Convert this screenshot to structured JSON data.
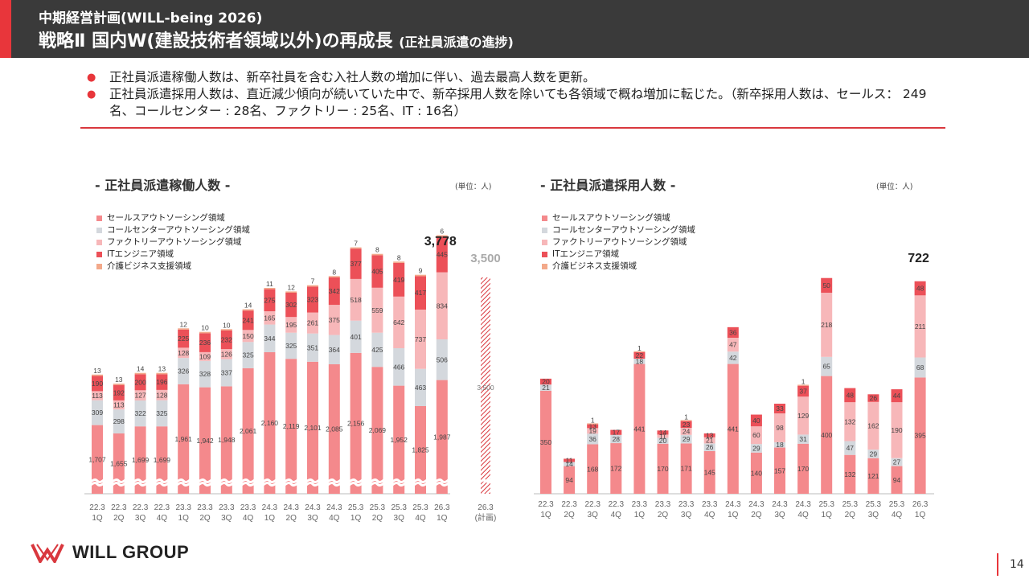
{
  "header": {
    "subtitle": "中期経営計画(WILL-being 2026)",
    "title": "戦略Ⅱ 国内W(建設技術者領域以外)の再成長",
    "title_note": "(正社員派遣の進捗)"
  },
  "bullets": [
    "正社員派遣稼働人数は、新卒社員を含む入社人数の増加に伴い、過去最高人数を更新。",
    "正社員派遣採用人数は、直近減少傾向が続いていた中で、新卒採用人数を除いても各領域で概ね増加に転じた。（新卒採用人数は、セールス： 249名、コールセンター : 28名、ファクトリー : 25名、IT : 16名）"
  ],
  "colors": {
    "header_bg": "#3a3a3a",
    "accent": "#e8363b",
    "sales": "#f4898c",
    "callcenter": "#d4d8dd",
    "factory": "#f7b7b9",
    "it": "#ec5058",
    "care": "#f3a98a"
  },
  "legend": [
    {
      "label": "セールスアウトソーシング領域",
      "color": "#f4898c"
    },
    {
      "label": "コールセンターアウトソーシング領域",
      "color": "#d4d8dd"
    },
    {
      "label": "ファクトリーアウトソーシング領域",
      "color": "#f7b7b9"
    },
    {
      "label": "ITエンジニア領域",
      "color": "#ec5058"
    },
    {
      "label": "介護ビジネス支援領域",
      "color": "#f3a98a"
    }
  ],
  "chart_data": [
    {
      "type": "bar",
      "stacked": true,
      "axis_break": true,
      "title": "- 正社員派遣稼働人数 -",
      "unit": "(単位：人)",
      "categories": [
        "22.3\n1Q",
        "22.3\n2Q",
        "22.3\n3Q",
        "22.3\n4Q",
        "23.3\n1Q",
        "23.3\n2Q",
        "23.3\n3Q",
        "23.3\n4Q",
        "24.3\n1Q",
        "24.3\n2Q",
        "24.3\n3Q",
        "24.3\n4Q",
        "25.3\n1Q",
        "25.3\n2Q",
        "25.3\n3Q",
        "25.3\n4Q",
        "26.3\n1Q"
      ],
      "series": [
        {
          "name": "セールスアウトソーシング領域",
          "values": [
            1707,
            1655,
            1699,
            1699,
            1961,
            1942,
            1948,
            2061,
            2160,
            2119,
            2101,
            2085,
            2156,
            2069,
            1952,
            1825,
            1987
          ]
        },
        {
          "name": "コールセンターアウトソーシング領域",
          "values": [
            309,
            298,
            322,
            325,
            326,
            328,
            337,
            325,
            344,
            325,
            351,
            364,
            401,
            425,
            466,
            463,
            506
          ]
        },
        {
          "name": "ファクトリーアウトソーシング領域",
          "values": [
            113,
            113,
            127,
            128,
            128,
            109,
            126,
            150,
            165,
            195,
            261,
            375,
            518,
            559,
            642,
            737,
            834
          ]
        },
        {
          "name": "ITエンジニア領域",
          "values": [
            190,
            192,
            200,
            196,
            225,
            236,
            232,
            241,
            275,
            302,
            323,
            342,
            377,
            405,
            419,
            417,
            445
          ]
        },
        {
          "name": "介護ビジネス支援領域",
          "values": [
            13,
            13,
            14,
            13,
            12,
            10,
            10,
            14,
            11,
            12,
            7,
            8,
            7,
            8,
            8,
            9,
            6
          ]
        }
      ],
      "total_label": "3,778",
      "plan": {
        "category": "26.3\n(計画)",
        "value": 3500,
        "value_label": "3,500",
        "inner_label": "3,500"
      }
    },
    {
      "type": "bar",
      "stacked": true,
      "title": "- 正社員派遣採用人数 -",
      "unit": "(単位：人)",
      "categories": [
        "22.3\n1Q",
        "22.3\n2Q",
        "22.3\n3Q",
        "22.3\n4Q",
        "23.3\n1Q",
        "23.3\n2Q",
        "23.3\n3Q",
        "23.3\n4Q",
        "24.3\n1Q",
        "24.3\n2Q",
        "24.3\n3Q",
        "24.3\n4Q",
        "25.3\n1Q",
        "25.3\n2Q",
        "25.3\n3Q",
        "25.3\n4Q",
        "26.3\n1Q"
      ],
      "series": [
        {
          "name": "セールスアウトソーシング領域",
          "values": [
            350,
            94,
            168,
            172,
            441,
            170,
            171,
            145,
            441,
            140,
            157,
            170,
            400,
            132,
            121,
            94,
            395
          ]
        },
        {
          "name": "コールセンターアウトソーシング領域",
          "values": [
            21,
            14,
            36,
            28,
            18,
            20,
            29,
            26,
            42,
            29,
            18,
            31,
            65,
            47,
            29,
            27,
            68
          ]
        },
        {
          "name": "ファクトリーアウトソーシング領域",
          "values": [
            null,
            null,
            19,
            null,
            null,
            11,
            24,
            21,
            47,
            60,
            98,
            129,
            218,
            132,
            162,
            190,
            211
          ]
        },
        {
          "name": "ITエンジニア領域",
          "values": [
            20,
            11,
            13,
            17,
            22,
            14,
            23,
            13,
            36,
            40,
            33,
            37,
            50,
            48,
            26,
            44,
            48
          ]
        },
        {
          "name": "介護ビジネス支援領域",
          "values": [
            null,
            null,
            1,
            null,
            1,
            null,
            1,
            null,
            null,
            null,
            null,
            1,
            null,
            null,
            null,
            null,
            null
          ]
        }
      ],
      "total_label": "722"
    }
  ],
  "page_number": "14",
  "logo_text": "WILL GROUP"
}
